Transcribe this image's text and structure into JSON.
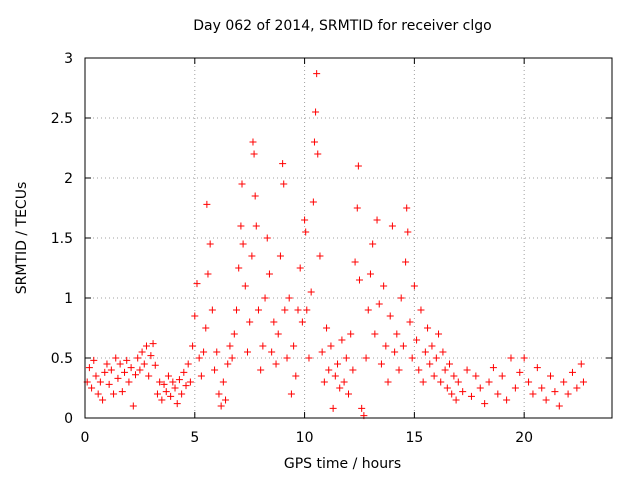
{
  "chart_data": {
    "type": "scatter",
    "title": "Day 062 of 2014, SRMTID for receiver clgo",
    "xlabel": "GPS time / hours",
    "ylabel": "SRMTID / TECUs",
    "xlim": [
      0,
      24
    ],
    "ylim": [
      0,
      3
    ],
    "x_ticks": [
      0,
      5,
      10,
      15,
      20
    ],
    "x_tick_labels": [
      "0",
      "5",
      "10",
      "15",
      "20"
    ],
    "y_ticks": [
      0,
      0.5,
      1,
      1.5,
      2,
      2.5,
      3
    ],
    "y_tick_labels": [
      "0",
      "0.5",
      "1",
      "1.5",
      "2",
      "2.5",
      "3"
    ],
    "grid": true,
    "marker": "+",
    "color": "#ff0000",
    "series": [
      {
        "name": "SRMTID",
        "points": [
          [
            0.1,
            0.3
          ],
          [
            0.2,
            0.42
          ],
          [
            0.3,
            0.25
          ],
          [
            0.4,
            0.48
          ],
          [
            0.5,
            0.35
          ],
          [
            0.6,
            0.2
          ],
          [
            0.7,
            0.3
          ],
          [
            0.8,
            0.15
          ],
          [
            0.9,
            0.38
          ],
          [
            1.0,
            0.45
          ],
          [
            1.1,
            0.28
          ],
          [
            1.2,
            0.4
          ],
          [
            1.3,
            0.2
          ],
          [
            1.4,
            0.5
          ],
          [
            1.5,
            0.33
          ],
          [
            1.6,
            0.45
          ],
          [
            1.7,
            0.22
          ],
          [
            1.8,
            0.38
          ],
          [
            1.9,
            0.48
          ],
          [
            2.0,
            0.3
          ],
          [
            2.1,
            0.42
          ],
          [
            2.2,
            0.1
          ],
          [
            2.3,
            0.36
          ],
          [
            2.4,
            0.5
          ],
          [
            2.5,
            0.4
          ],
          [
            2.6,
            0.55
          ],
          [
            2.7,
            0.45
          ],
          [
            2.8,
            0.6
          ],
          [
            2.9,
            0.35
          ],
          [
            3.0,
            0.52
          ],
          [
            3.1,
            0.62
          ],
          [
            3.2,
            0.44
          ],
          [
            3.3,
            0.2
          ],
          [
            3.4,
            0.3
          ],
          [
            3.5,
            0.15
          ],
          [
            3.6,
            0.28
          ],
          [
            3.7,
            0.22
          ],
          [
            3.8,
            0.35
          ],
          [
            3.9,
            0.18
          ],
          [
            4.0,
            0.3
          ],
          [
            4.1,
            0.25
          ],
          [
            4.2,
            0.12
          ],
          [
            4.3,
            0.32
          ],
          [
            4.4,
            0.2
          ],
          [
            4.5,
            0.38
          ],
          [
            4.6,
            0.27
          ],
          [
            4.7,
            0.45
          ],
          [
            4.8,
            0.3
          ],
          [
            4.9,
            0.6
          ],
          [
            5.0,
            0.85
          ],
          [
            5.1,
            1.12
          ],
          [
            5.2,
            0.5
          ],
          [
            5.3,
            0.35
          ],
          [
            5.4,
            0.55
          ],
          [
            5.5,
            0.75
          ],
          [
            5.55,
            1.78
          ],
          [
            5.6,
            1.2
          ],
          [
            5.7,
            1.45
          ],
          [
            5.8,
            0.9
          ],
          [
            5.9,
            0.4
          ],
          [
            6.0,
            0.55
          ],
          [
            6.1,
            0.2
          ],
          [
            6.2,
            0.1
          ],
          [
            6.3,
            0.3
          ],
          [
            6.4,
            0.15
          ],
          [
            6.5,
            0.45
          ],
          [
            6.6,
            0.6
          ],
          [
            6.7,
            0.5
          ],
          [
            6.8,
            0.7
          ],
          [
            6.9,
            0.9
          ],
          [
            7.0,
            1.25
          ],
          [
            7.1,
            1.6
          ],
          [
            7.15,
            1.95
          ],
          [
            7.2,
            1.45
          ],
          [
            7.3,
            1.1
          ],
          [
            7.4,
            0.55
          ],
          [
            7.5,
            0.8
          ],
          [
            7.6,
            1.35
          ],
          [
            7.65,
            2.3
          ],
          [
            7.7,
            2.2
          ],
          [
            7.75,
            1.85
          ],
          [
            7.8,
            1.6
          ],
          [
            7.9,
            0.9
          ],
          [
            8.0,
            0.4
          ],
          [
            8.1,
            0.6
          ],
          [
            8.2,
            1.0
          ],
          [
            8.3,
            1.5
          ],
          [
            8.4,
            1.2
          ],
          [
            8.5,
            0.55
          ],
          [
            8.6,
            0.8
          ],
          [
            8.7,
            0.45
          ],
          [
            8.8,
            0.7
          ],
          [
            8.9,
            1.35
          ],
          [
            9.0,
            2.12
          ],
          [
            9.05,
            1.95
          ],
          [
            9.1,
            0.9
          ],
          [
            9.2,
            0.5
          ],
          [
            9.3,
            1.0
          ],
          [
            9.4,
            0.2
          ],
          [
            9.5,
            0.6
          ],
          [
            9.6,
            0.35
          ],
          [
            9.7,
            0.9
          ],
          [
            9.8,
            1.25
          ],
          [
            9.9,
            0.8
          ],
          [
            10.0,
            1.65
          ],
          [
            10.05,
            1.55
          ],
          [
            10.1,
            0.9
          ],
          [
            10.2,
            0.5
          ],
          [
            10.3,
            1.05
          ],
          [
            10.4,
            1.8
          ],
          [
            10.45,
            2.3
          ],
          [
            10.5,
            2.55
          ],
          [
            10.55,
            2.87
          ],
          [
            10.6,
            2.2
          ],
          [
            10.7,
            1.35
          ],
          [
            10.8,
            0.55
          ],
          [
            10.9,
            0.3
          ],
          [
            11.0,
            0.75
          ],
          [
            11.1,
            0.4
          ],
          [
            11.2,
            0.6
          ],
          [
            11.3,
            0.08
          ],
          [
            11.4,
            0.35
          ],
          [
            11.5,
            0.45
          ],
          [
            11.6,
            0.25
          ],
          [
            11.7,
            0.65
          ],
          [
            11.8,
            0.3
          ],
          [
            11.9,
            0.5
          ],
          [
            12.0,
            0.2
          ],
          [
            12.1,
            0.7
          ],
          [
            12.2,
            0.4
          ],
          [
            12.3,
            1.3
          ],
          [
            12.4,
            1.75
          ],
          [
            12.45,
            2.1
          ],
          [
            12.5,
            1.15
          ],
          [
            12.6,
            0.08
          ],
          [
            12.7,
            0.02
          ],
          [
            12.8,
            0.5
          ],
          [
            12.9,
            0.9
          ],
          [
            13.0,
            1.2
          ],
          [
            13.1,
            1.45
          ],
          [
            13.2,
            0.7
          ],
          [
            13.3,
            1.65
          ],
          [
            13.4,
            0.95
          ],
          [
            13.5,
            0.45
          ],
          [
            13.6,
            1.1
          ],
          [
            13.7,
            0.6
          ],
          [
            13.8,
            0.3
          ],
          [
            13.9,
            0.85
          ],
          [
            14.0,
            1.6
          ],
          [
            14.1,
            0.55
          ],
          [
            14.2,
            0.7
          ],
          [
            14.3,
            0.4
          ],
          [
            14.4,
            1.0
          ],
          [
            14.5,
            0.6
          ],
          [
            14.6,
            1.3
          ],
          [
            14.65,
            1.75
          ],
          [
            14.7,
            1.55
          ],
          [
            14.8,
            0.8
          ],
          [
            14.9,
            0.5
          ],
          [
            15.0,
            1.1
          ],
          [
            15.1,
            0.65
          ],
          [
            15.2,
            0.4
          ],
          [
            15.3,
            0.9
          ],
          [
            15.4,
            0.3
          ],
          [
            15.5,
            0.55
          ],
          [
            15.6,
            0.75
          ],
          [
            15.7,
            0.45
          ],
          [
            15.8,
            0.6
          ],
          [
            15.9,
            0.35
          ],
          [
            16.0,
            0.5
          ],
          [
            16.1,
            0.7
          ],
          [
            16.2,
            0.3
          ],
          [
            16.3,
            0.55
          ],
          [
            16.4,
            0.4
          ],
          [
            16.5,
            0.25
          ],
          [
            16.6,
            0.45
          ],
          [
            16.7,
            0.2
          ],
          [
            16.8,
            0.35
          ],
          [
            16.9,
            0.15
          ],
          [
            17.0,
            0.3
          ],
          [
            17.2,
            0.22
          ],
          [
            17.4,
            0.4
          ],
          [
            17.6,
            0.18
          ],
          [
            17.8,
            0.35
          ],
          [
            18.0,
            0.25
          ],
          [
            18.2,
            0.12
          ],
          [
            18.4,
            0.3
          ],
          [
            18.6,
            0.42
          ],
          [
            18.8,
            0.2
          ],
          [
            19.0,
            0.35
          ],
          [
            19.2,
            0.15
          ],
          [
            19.4,
            0.5
          ],
          [
            19.6,
            0.25
          ],
          [
            19.8,
            0.38
          ],
          [
            20.0,
            0.5
          ],
          [
            20.2,
            0.3
          ],
          [
            20.4,
            0.2
          ],
          [
            20.6,
            0.42
          ],
          [
            20.8,
            0.25
          ],
          [
            21.0,
            0.15
          ],
          [
            21.2,
            0.35
          ],
          [
            21.4,
            0.22
          ],
          [
            21.6,
            0.1
          ],
          [
            21.8,
            0.3
          ],
          [
            22.0,
            0.2
          ],
          [
            22.2,
            0.38
          ],
          [
            22.4,
            0.25
          ],
          [
            22.6,
            0.45
          ],
          [
            22.7,
            0.3
          ]
        ]
      }
    ]
  }
}
